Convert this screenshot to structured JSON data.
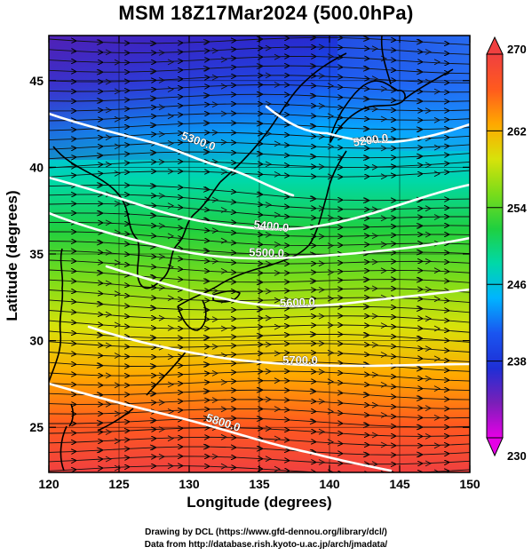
{
  "title": "MSM 18Z17Mar2024 (500.0hPa)",
  "axes": {
    "x_label": "Longitude (degrees)",
    "y_label": "Latitude  (degrees)",
    "x_ticks": [
      {
        "value": 120,
        "label": "120"
      },
      {
        "value": 125,
        "label": "125"
      },
      {
        "value": 130,
        "label": "130"
      },
      {
        "value": 135,
        "label": "135"
      },
      {
        "value": 140,
        "label": "140"
      },
      {
        "value": 145,
        "label": "145"
      },
      {
        "value": 150,
        "label": "150"
      }
    ],
    "y_ticks": [
      {
        "value": 25,
        "label": "25"
      },
      {
        "value": 30,
        "label": "30"
      },
      {
        "value": 35,
        "label": "35"
      },
      {
        "value": 40,
        "label": "40"
      },
      {
        "value": 45,
        "label": "45"
      }
    ],
    "x_range": [
      120,
      150
    ],
    "y_range": [
      22.4,
      47.6
    ]
  },
  "colorbar": {
    "min": 230,
    "max": 270,
    "labels": [
      {
        "value": 230,
        "label": "230"
      },
      {
        "value": 238,
        "label": "238"
      },
      {
        "value": 246,
        "label": "246"
      },
      {
        "value": 254,
        "label": "254"
      },
      {
        "value": 262,
        "label": "262"
      },
      {
        "value": 270,
        "label": "270"
      }
    ],
    "colors": [
      "#e600e6",
      "#7a1fb8",
      "#1e2fd6",
      "#1a55f0",
      "#00b4ff",
      "#00d8a8",
      "#1fd040",
      "#7adc1a",
      "#d8e20a",
      "#ffa800",
      "#ff5a1e",
      "#f04040"
    ]
  },
  "contour_labels": [
    "5200.0",
    "5300.0",
    "5400.0",
    "5500.0",
    "5600.0",
    "5700.0",
    "5800.0"
  ],
  "credits": {
    "line1": "Drawing by DCL (https://www.gfd-dennou.org/library/dcl/)",
    "line2": "Data from http://database.rish.kyoto-u.ac.jp/arch/jmadata/"
  }
}
